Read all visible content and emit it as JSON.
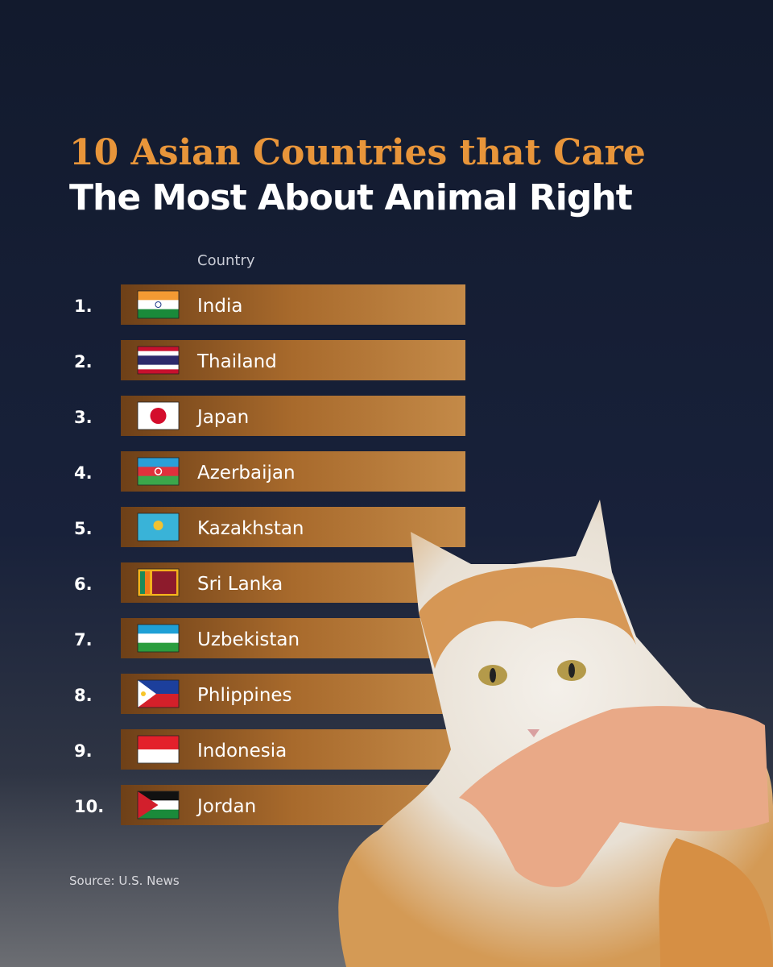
{
  "header": {
    "title_line1": "10 Asian Countries that Care",
    "title_line2": "The Most About Animal Right"
  },
  "table": {
    "column_header": "Country",
    "rows": [
      {
        "rank": "1.",
        "country": "India"
      },
      {
        "rank": "2.",
        "country": "Thailand"
      },
      {
        "rank": "3.",
        "country": "Japan"
      },
      {
        "rank": "4.",
        "country": "Azerbaijan"
      },
      {
        "rank": "5.",
        "country": "Kazakhstan"
      },
      {
        "rank": "6.",
        "country": "Sri Lanka"
      },
      {
        "rank": "7.",
        "country": "Uzbekistan"
      },
      {
        "rank": "8.",
        "country": "Phlippines"
      },
      {
        "rank": "9.",
        "country": "Indonesia"
      },
      {
        "rank": "10.",
        "country": "Jordan"
      }
    ]
  },
  "footer": {
    "source": "Source: U.S. News"
  }
}
